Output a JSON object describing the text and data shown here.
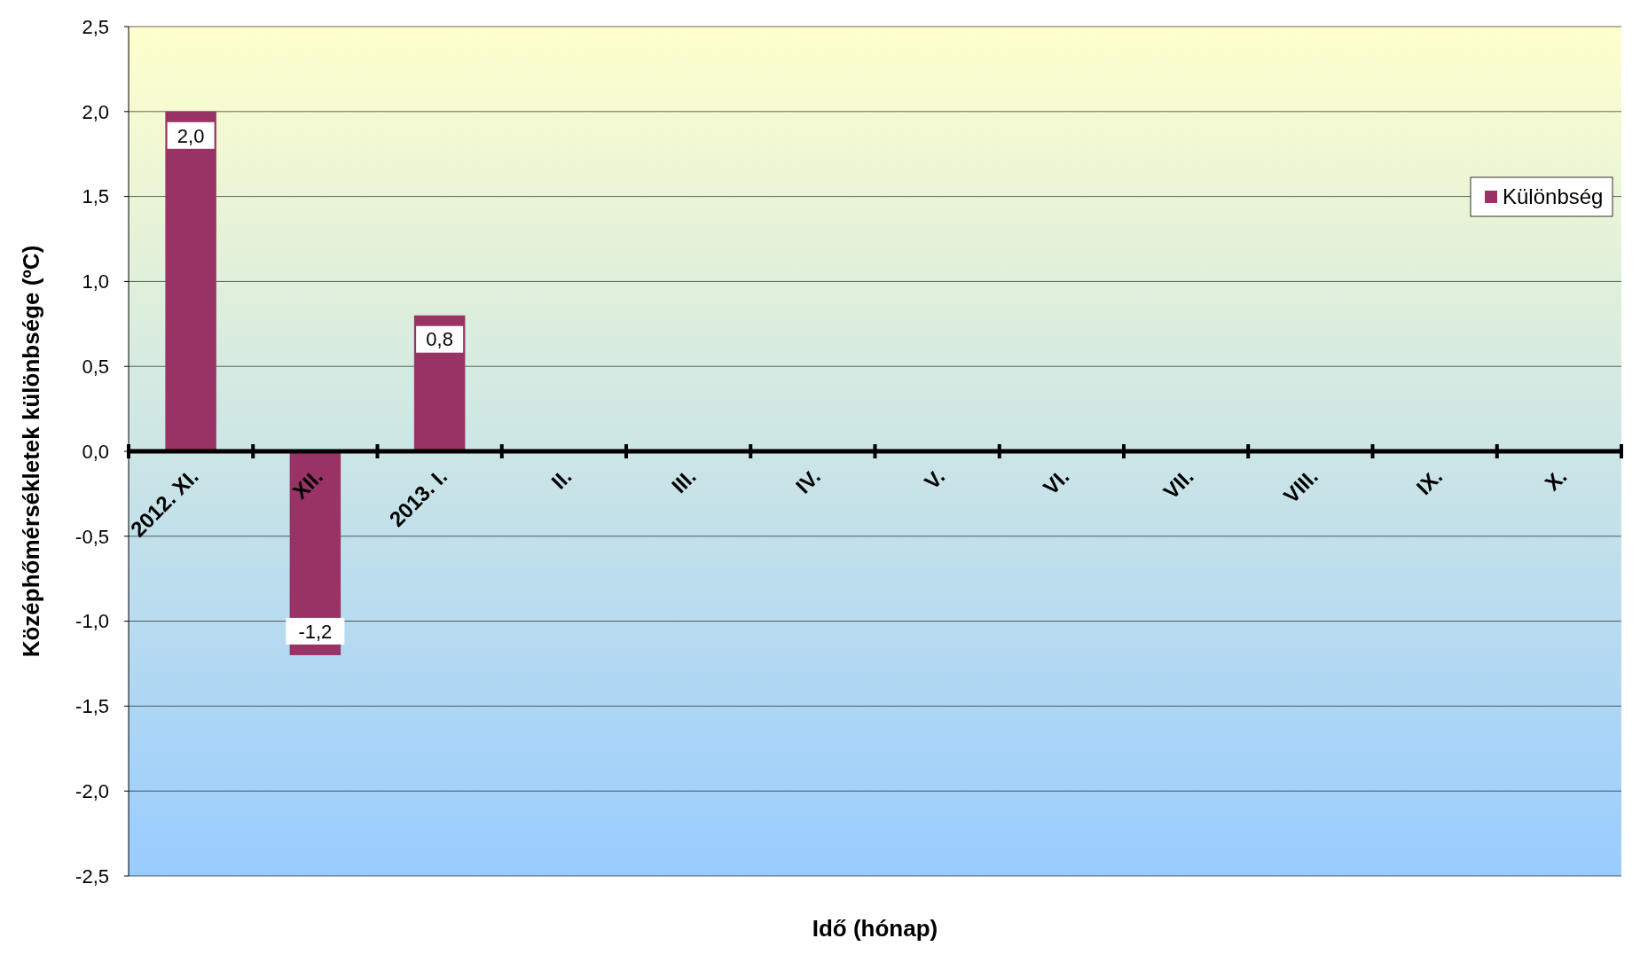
{
  "chart_data": {
    "type": "bar",
    "xlabel": "Idő (hónap)",
    "ylabel": "Középhőmérsékletek különbsége (ºC)",
    "categories": [
      "2012. XI.",
      "XII.",
      "2013. I.",
      "II.",
      "III.",
      "IV.",
      "V.",
      "VI.",
      "VII.",
      "VIII.",
      "IX.",
      "X."
    ],
    "series": [
      {
        "name": "Különbség",
        "color": "#993366",
        "values": [
          2.0,
          -1.2,
          0.8,
          null,
          null,
          null,
          null,
          null,
          null,
          null,
          null,
          null
        ],
        "value_labels": [
          "2,0",
          "-1,2",
          "0,8",
          null,
          null,
          null,
          null,
          null,
          null,
          null,
          null,
          null
        ]
      }
    ],
    "ylim": [
      -2.5,
      2.5
    ],
    "yticks": [
      {
        "value": -2.5,
        "label": "-2,5"
      },
      {
        "value": -2,
        "label": "-2,0"
      },
      {
        "value": -1.5,
        "label": "-1,5"
      },
      {
        "value": -1,
        "label": "-1,0"
      },
      {
        "value": -0.5,
        "label": "-0,5"
      },
      {
        "value": 0,
        "label": "0,0"
      },
      {
        "value": 0.5,
        "label": "0,5"
      },
      {
        "value": 1,
        "label": "1,0"
      },
      {
        "value": 1.5,
        "label": "1,5"
      },
      {
        "value": 2,
        "label": "2,0"
      },
      {
        "value": 2.5,
        "label": "2,5"
      }
    ],
    "grid": "y",
    "legend": "top right"
  }
}
